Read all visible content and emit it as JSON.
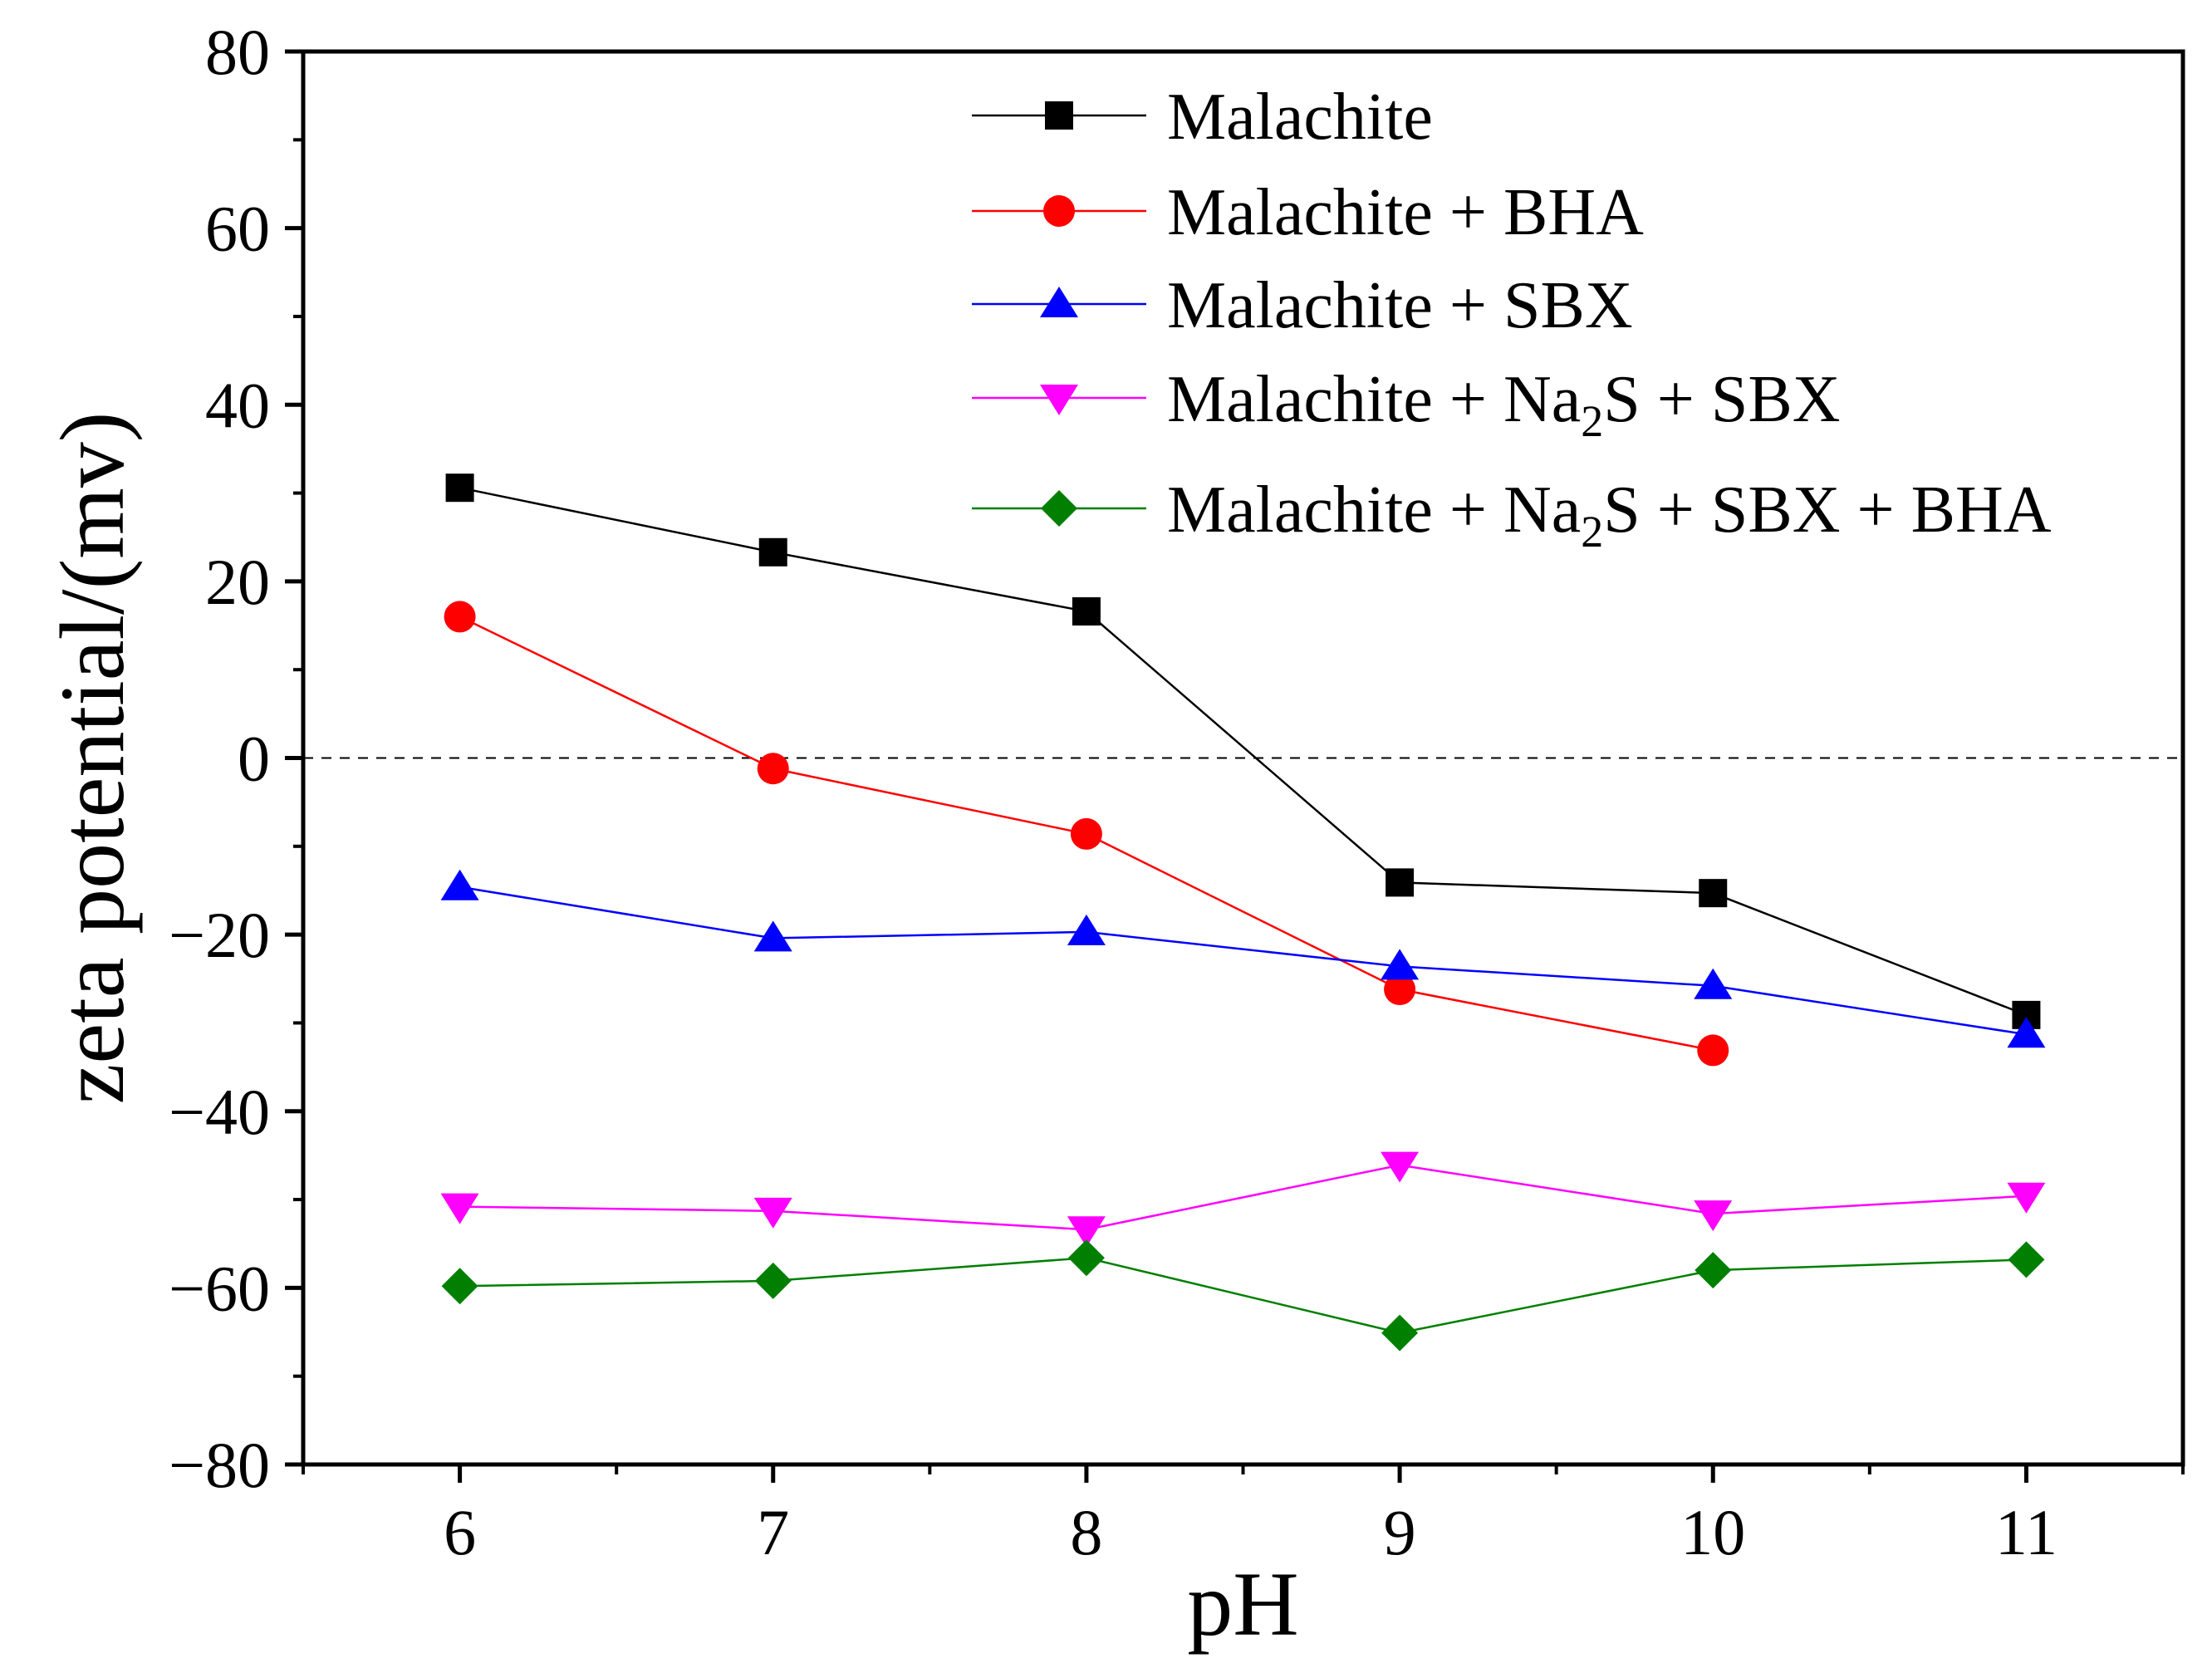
{
  "chart_data": {
    "type": "line",
    "title": "",
    "xlabel": "pH",
    "ylabel": "zeta potential/(mv)",
    "xlim": [
      5.5,
      11.5
    ],
    "ylim": [
      -80,
      80
    ],
    "x_ticks": [
      6,
      7,
      8,
      9,
      10,
      11
    ],
    "y_ticks": [
      -80,
      -60,
      -40,
      -20,
      0,
      20,
      40,
      60,
      80
    ],
    "y_tick_labels": [
      "−80",
      "−60",
      "−40",
      "−20",
      "0",
      "20",
      "40",
      "60",
      "80"
    ],
    "reference_line": {
      "y": 0,
      "style": "dashed"
    },
    "grid": false,
    "legend_position": "top-right",
    "series": [
      {
        "name": "Malachite",
        "color": "#000000",
        "marker": "square",
        "x": [
          6,
          7,
          8,
          9,
          10,
          11
        ],
        "y": [
          30.6,
          23.3,
          16.6,
          -14.1,
          -15.3,
          -29.1
        ]
      },
      {
        "name": "Malachite + BHA",
        "color": "#ff0000",
        "marker": "circle",
        "x": [
          6,
          7,
          8,
          9,
          10
        ],
        "y": [
          16.0,
          -1.2,
          -8.6,
          -26.2,
          -33.1
        ]
      },
      {
        "name": "Malachite + SBX",
        "color": "#0000ff",
        "marker": "triangle-up",
        "x": [
          6,
          7,
          8,
          9,
          10,
          11
        ],
        "y": [
          -14.6,
          -20.4,
          -19.7,
          -23.6,
          -25.8,
          -31.3
        ]
      },
      {
        "name": "Malachite + Na2S + SBX",
        "color": "#ff00ff",
        "marker": "triangle-down",
        "x": [
          6,
          7,
          8,
          9,
          10,
          11
        ],
        "y": [
          -50.8,
          -51.3,
          -53.4,
          -46.1,
          -51.6,
          -49.6
        ]
      },
      {
        "name": "Malachite + Na2S + SBX + BHA",
        "color": "#007f00",
        "marker": "diamond",
        "x": [
          6,
          7,
          8,
          9,
          10,
          11
        ],
        "y": [
          -59.8,
          -59.2,
          -56.6,
          -65.1,
          -58.0,
          -56.8
        ]
      }
    ],
    "legend": [
      {
        "parts": [
          {
            "t": "Malachite"
          }
        ]
      },
      {
        "parts": [
          {
            "t": "Malachite + BHA"
          }
        ]
      },
      {
        "parts": [
          {
            "t": "Malachite + SBX"
          }
        ]
      },
      {
        "parts": [
          {
            "t": "Malachite + Na"
          },
          {
            "t": "2",
            "sub": true
          },
          {
            "t": "S + SBX"
          }
        ]
      },
      {
        "parts": [
          {
            "t": "Malachite + Na"
          },
          {
            "t": "2",
            "sub": true
          },
          {
            "t": "S + SBX + BHA"
          }
        ]
      }
    ]
  }
}
